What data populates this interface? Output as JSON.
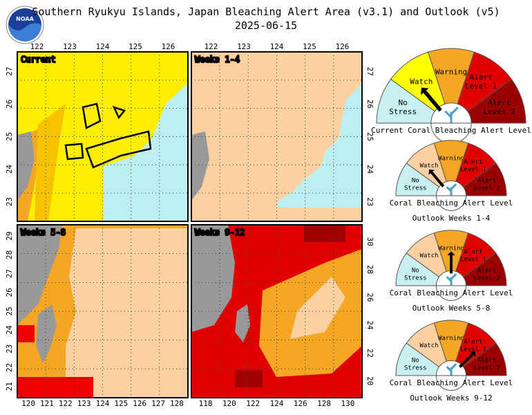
{
  "header": {
    "title": "Southern Ryukyu Islands, Japan Bleaching Alert Area (v3.1) and Outlook (v5)",
    "date": "2025-06-15"
  },
  "panels": [
    {
      "label": "Current",
      "top_ticks": [
        "122",
        "123",
        "124",
        "125",
        "126"
      ],
      "left_ticks": [
        "27",
        "26",
        "25",
        "24",
        "23"
      ]
    },
    {
      "label": "Weeks 1-4",
      "top_ticks": [
        "122",
        "123",
        "124",
        "125",
        "126"
      ],
      "right_ticks": [
        "27",
        "26",
        "25",
        "24",
        "23"
      ]
    },
    {
      "label": "Weeks 5-8",
      "left_ticks": [
        "29",
        "28",
        "27",
        "26",
        "25",
        "24",
        "23",
        "22",
        "21"
      ],
      "bottom_ticks": [
        "120",
        "121",
        "122",
        "123",
        "124",
        "125",
        "126",
        "127",
        "128"
      ]
    },
    {
      "label": "Weeks 9-12",
      "right_ticks": [
        "30",
        "28",
        "26",
        "24",
        "22",
        "20"
      ],
      "bottom_ticks": [
        "118",
        "120",
        "122",
        "124",
        "126",
        "128",
        "130"
      ]
    }
  ],
  "gauges": [
    {
      "levels": [
        [
          "No",
          "Stress"
        ],
        [
          "Watch"
        ],
        [
          "Warning"
        ],
        [
          "Alert",
          "Level 1"
        ],
        [
          "Alert",
          "Level 2"
        ]
      ],
      "caption": [
        "Current Coral Bleaching Alert Level"
      ]
    },
    {
      "levels": [
        [
          "No",
          "Stress"
        ],
        [
          "Watch"
        ],
        [
          "Warning"
        ],
        [
          "Alert",
          "Level 1"
        ],
        [
          "Alert",
          "Level 2"
        ]
      ],
      "caption": [
        "Coral Bleaching Alert Level",
        "Outlook Weeks 1-4"
      ]
    },
    {
      "levels": [
        [
          "No",
          "Stress"
        ],
        [
          "Watch"
        ],
        [
          "Warning"
        ],
        [
          "Alert",
          "Level 1"
        ],
        [
          "Alert",
          "Level 2"
        ]
      ],
      "caption": [
        "Coral Bleaching Alert Level",
        "Outlook Weeks 5-8"
      ]
    },
    {
      "levels": [
        [
          "No",
          "Stress"
        ],
        [
          "Watch"
        ],
        [
          "Warning"
        ],
        [
          "Alert",
          "Level 1"
        ],
        [
          "Alert",
          "Level 2"
        ]
      ],
      "caption": [
        "Coral Bleaching Alert Level",
        "Outlook Weeks 9-12"
      ]
    }
  ]
}
